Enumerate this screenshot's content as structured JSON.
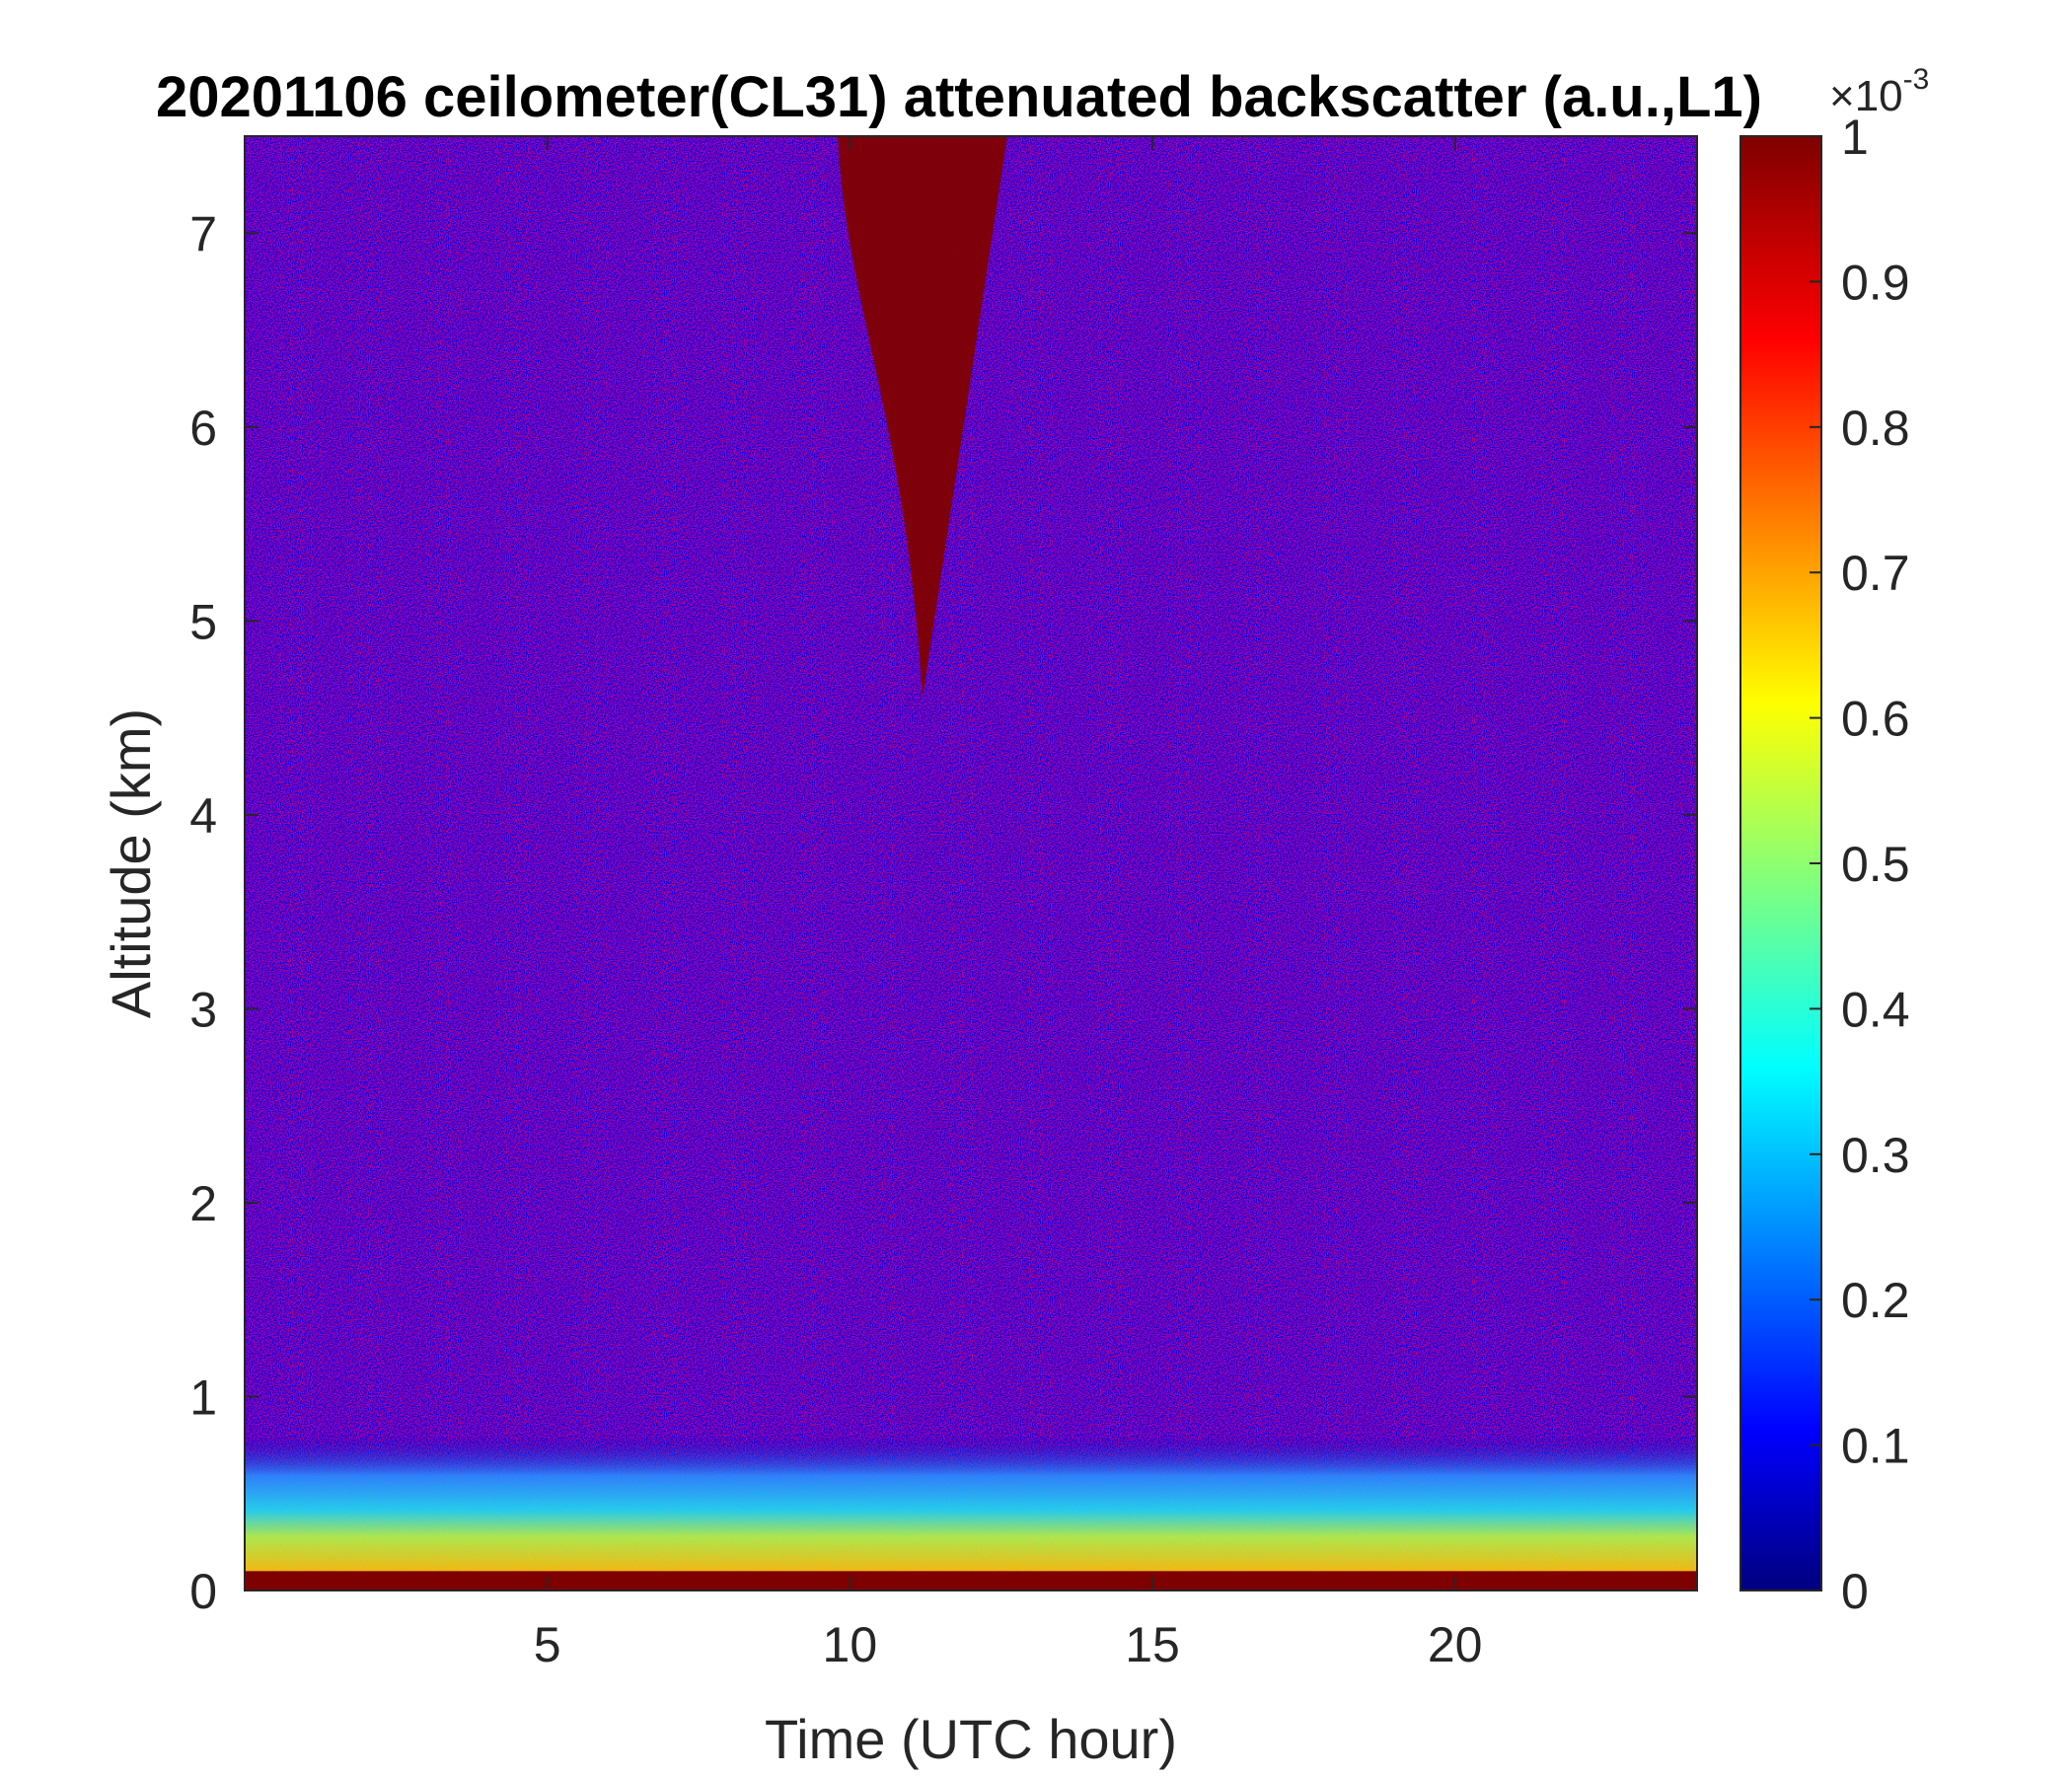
{
  "chart_data": {
    "type": "heatmap",
    "title": "20201106 ceilometer(CL31) attenuated backscatter (a.u.,L1)",
    "xlabel": "Time (UTC hour)",
    "ylabel": "Altitude (km)",
    "xlim": [
      0,
      24
    ],
    "ylim": [
      0,
      7.5
    ],
    "x_ticks": [
      5,
      10,
      15,
      20
    ],
    "y_ticks": [
      0,
      1,
      2,
      3,
      4,
      5,
      6,
      7
    ],
    "colormap": "jet",
    "colorbar": {
      "range": [
        0,
        1
      ],
      "ticks": [
        0,
        0.1,
        0.2,
        0.3,
        0.4,
        0.5,
        0.6,
        0.7,
        0.8,
        0.9,
        1
      ],
      "exponent_label": "×10",
      "exponent_power": "-3"
    },
    "features": [
      {
        "description": "strong backscatter layer near surface",
        "x_range": [
          0,
          24
        ],
        "altitude_km": [
          0,
          0.1
        ],
        "value": 1.0
      },
      {
        "description": "aerosol boundary layer",
        "x_range": [
          0,
          24
        ],
        "altitude_km": [
          0.1,
          0.8
        ],
        "value": 0.45
      },
      {
        "description": "cirrus cloud plume",
        "x_range": [
          9.8,
          12.6
        ],
        "altitude_km": [
          4.6,
          7.5
        ],
        "value": 1.0
      },
      {
        "description": "noise background",
        "x_range": [
          0,
          24
        ],
        "altitude_km": [
          1.0,
          7.5
        ],
        "value": 0.15
      }
    ]
  }
}
